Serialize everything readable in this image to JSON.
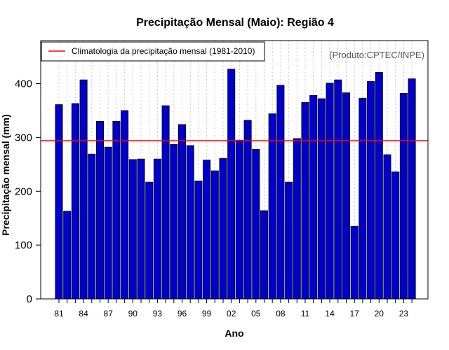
{
  "chart_data": {
    "type": "bar",
    "title": "Precipitação Mensal (Maio): Região 4",
    "xlabel": "Ano",
    "ylabel": "Precipitação mensal (mm)",
    "ylim": [
      0,
      480
    ],
    "yticks": [
      0,
      100,
      200,
      300,
      400
    ],
    "categories": [
      "1981",
      "1982",
      "1983",
      "1984",
      "1985",
      "1986",
      "1987",
      "1988",
      "1989",
      "1990",
      "1991",
      "1992",
      "1993",
      "1994",
      "1995",
      "1996",
      "1997",
      "1998",
      "1999",
      "2000",
      "2001",
      "2002",
      "2003",
      "2004",
      "2005",
      "2006",
      "2007",
      "2008",
      "2009",
      "2010",
      "2011",
      "2012",
      "2013",
      "2014",
      "2015",
      "2016",
      "2017",
      "2018",
      "2019",
      "2020",
      "2021",
      "2022",
      "2023",
      "2024"
    ],
    "xtick_labels": [
      "81",
      "",
      "",
      "84",
      "",
      "",
      "87",
      "",
      "",
      "90",
      "",
      "",
      "93",
      "",
      "",
      "96",
      "",
      "",
      "99",
      "",
      "",
      "02",
      "",
      "",
      "05",
      "",
      "",
      "08",
      "",
      "",
      "11",
      "",
      "",
      "14",
      "",
      "",
      "17",
      "",
      "",
      "20",
      "",
      "",
      "23",
      ""
    ],
    "values": [
      361,
      163,
      363,
      407,
      269,
      330,
      282,
      330,
      350,
      259,
      260,
      217,
      260,
      359,
      287,
      324,
      285,
      219,
      258,
      238,
      261,
      427,
      295,
      332,
      278,
      164,
      344,
      397,
      217,
      298,
      365,
      378,
      372,
      401,
      407,
      383,
      135,
      373,
      404,
      421,
      268,
      236,
      382,
      409
    ],
    "series_name": "Precipitação mensal",
    "bar_color": "#0000cd",
    "reference_line": {
      "label": "Climatologia da precipitação mensal (1981-2010)",
      "value": 294,
      "color": "#ff0000"
    },
    "legend_position": "top-left",
    "credit": "(Produto:CPTEC/INPE)",
    "grid": "vertical-dotted"
  }
}
